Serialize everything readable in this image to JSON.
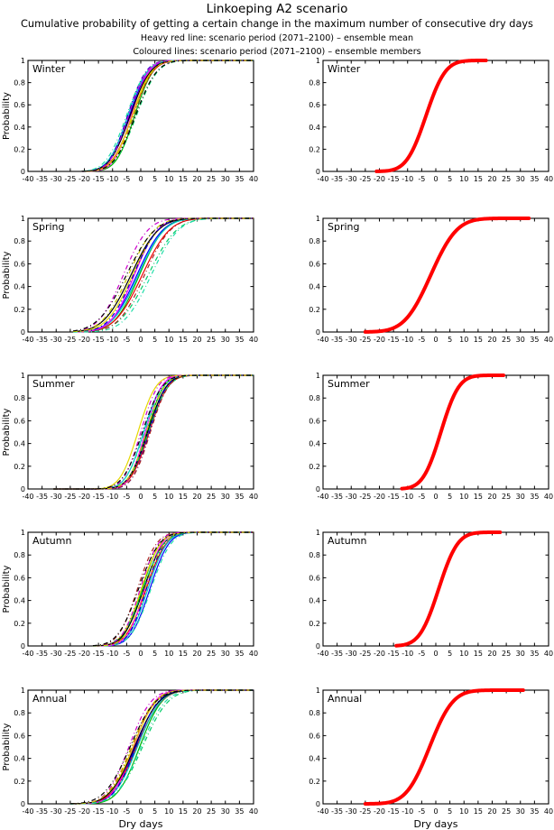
{
  "title": "Linkoeping A2 scenario",
  "subtitle": "Cumulative probability of getting a certain change in the maximum number of consecutive dry days",
  "legend": {
    "mean": "Heavy red line: scenario period (2071–2100) – ensemble mean",
    "members": "Coloured lines: scenario period (2071–2100) – ensemble members"
  },
  "axes": {
    "xlabel": "Dry days",
    "ylabel": "Probability",
    "xmin": -40,
    "xmax": 40,
    "xtick_step": 5,
    "yticks": [
      0,
      0.2,
      0.4,
      0.6,
      0.8,
      1
    ]
  },
  "colors": {
    "mean_line": "#ff0000",
    "axis": "#000000",
    "background": "#ffffff"
  },
  "ensemble_members": [
    {
      "name": "member-blue-solid",
      "color": "#0000ff",
      "style": "solid"
    },
    {
      "name": "member-green-solid",
      "color": "#00b400",
      "style": "solid"
    },
    {
      "name": "member-red-solid",
      "color": "#ee0000",
      "style": "solid"
    },
    {
      "name": "member-cyan-solid",
      "color": "#00c8c8",
      "style": "solid"
    },
    {
      "name": "member-magenta-solid",
      "color": "#ff00ff",
      "style": "solid"
    },
    {
      "name": "member-yellow-solid",
      "color": "#e6d800",
      "style": "solid"
    },
    {
      "name": "member-black-solid",
      "color": "#000000",
      "style": "solid"
    },
    {
      "name": "member-blue-dashdot",
      "color": "#0000cc",
      "style": "dashdot"
    },
    {
      "name": "member-green-dashdot",
      "color": "#00cc66",
      "style": "dashdot"
    },
    {
      "name": "member-darkred-dashdot",
      "color": "#aa2222",
      "style": "dashdot"
    },
    {
      "name": "member-teal-dashdot",
      "color": "#22ddaa",
      "style": "dashdot"
    },
    {
      "name": "member-magenta-dashdot",
      "color": "#cc00cc",
      "style": "dashdot"
    },
    {
      "name": "member-olive-dashdot",
      "color": "#cccc00",
      "style": "dashdot"
    },
    {
      "name": "member-black-dashdot",
      "color": "#000000",
      "style": "dashdot"
    }
  ],
  "member_sigma_scales": [
    1.0,
    0.95,
    1.05,
    1.0,
    0.9,
    1.0,
    1.05,
    0.95,
    1.1,
    1.0,
    1.05,
    0.95,
    1.0,
    1.1
  ],
  "chart_data": [
    {
      "season": "Winter",
      "type": "line",
      "mean_curve": {
        "mu": -3.5,
        "sigma": 5.4,
        "x_range": [
          -21,
          18
        ]
      },
      "members_x_range": [
        -21,
        40
      ],
      "member_mu_offsets": [
        -0.6,
        1.3,
        0.5,
        -1.1,
        0.1,
        0.4,
        -0.3,
        -1.2,
        1.9,
        0.9,
        -1.6,
        -0.9,
        0.7,
        1.6
      ]
    },
    {
      "season": "Spring",
      "type": "line",
      "mean_curve": {
        "mu": -1.8,
        "sigma": 7.3,
        "x_range": [
          -25,
          33
        ]
      },
      "members_x_range": [
        -24,
        40
      ],
      "member_mu_offsets": [
        0.4,
        1.3,
        2.3,
        0.9,
        -0.5,
        -1.1,
        -1.7,
        -0.8,
        4.4,
        3.1,
        5.5,
        -4.4,
        -2.6,
        -3.3
      ]
    },
    {
      "season": "Summer",
      "type": "line",
      "mean_curve": {
        "mu": 1.8,
        "sigma": 5.0,
        "x_range": [
          -12,
          24
        ]
      },
      "members_x_range": [
        -31,
        40
      ],
      "member_mu_offsets": [
        0.8,
        0.3,
        1.2,
        -0.8,
        -0.2,
        -2.8,
        0.6,
        1.3,
        0.9,
        1.6,
        -0.5,
        -1.8,
        0.2,
        -1.2
      ]
    },
    {
      "season": "Autumn",
      "type": "line",
      "mean_curve": {
        "mu": 1.0,
        "sigma": 5.3,
        "x_range": [
          -14,
          23
        ]
      },
      "members_x_range": [
        -17,
        40
      ],
      "member_mu_offsets": [
        2.2,
        -0.5,
        0.9,
        1.5,
        0.4,
        -0.8,
        0.0,
        1.0,
        -0.2,
        -2.2,
        2.6,
        -1.2,
        0.5,
        -1.8
      ]
    },
    {
      "season": "Annual",
      "type": "line",
      "mean_curve": {
        "mu": -2.2,
        "sigma": 6.5,
        "x_range": [
          -25,
          31
        ]
      },
      "members_x_range": [
        -25,
        40
      ],
      "member_mu_offsets": [
        0.3,
        1.8,
        0.7,
        1.0,
        -0.3,
        -0.6,
        0.0,
        0.5,
        2.8,
        -1.0,
        2.2,
        -2.0,
        -1.2,
        -1.6
      ]
    }
  ]
}
